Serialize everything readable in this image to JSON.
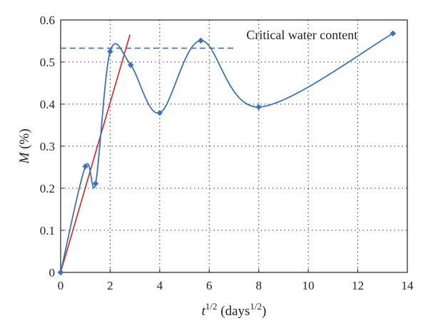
{
  "chart_data": {
    "type": "line",
    "xlabel_base": "t",
    "xlabel_exp": "1/2",
    "xlabel_unit": " (days",
    "xlabel_unit_exp": "1/2",
    "xlabel_close": ")",
    "ylabel_var": "M",
    "ylabel_unit": " (%)",
    "xlim": [
      0,
      14
    ],
    "ylim": [
      0,
      0.6
    ],
    "xticks": [
      "0",
      "2",
      "4",
      "6",
      "8",
      "10",
      "12",
      "14"
    ],
    "yticks": [
      "0",
      "0.1",
      "0.2",
      "0.3",
      "0.4",
      "0.5",
      "0.6"
    ],
    "grid": true,
    "series": [
      {
        "x": [
          0,
          1.0,
          1.41,
          2.0,
          2.83,
          4.0,
          5.66,
          8.0,
          13.42
        ],
        "y": [
          0,
          0.252,
          0.211,
          0.525,
          0.493,
          0.379,
          0.551,
          0.393,
          0.568
        ],
        "color": "#3a74b6",
        "marker": "diamond"
      }
    ],
    "fit_line": {
      "x": [
        0,
        2.8
      ],
      "y": [
        0,
        0.565
      ],
      "color": "#e02020"
    },
    "reference_line": {
      "y": 0.533,
      "x": [
        0,
        7.1
      ],
      "color": "#3a74b6",
      "style": "dashed"
    },
    "annotation": {
      "text": "Critical water content",
      "x": 7.5,
      "y": 0.554
    }
  }
}
